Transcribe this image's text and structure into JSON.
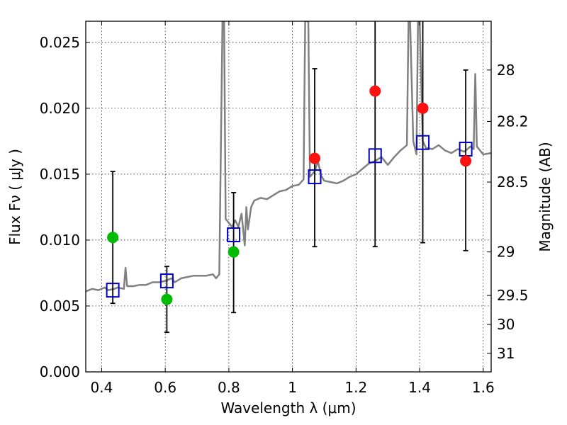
{
  "chart_data": {
    "type": "scatter",
    "title": "",
    "xlabel": "Wavelength  λ (μm)",
    "ylabel": "Flux  Fν  ( μJy )",
    "y2label": "Magnitude (AB)",
    "xlim": [
      0.35,
      1.625
    ],
    "ylim": [
      0.0,
      0.0266
    ],
    "grid": true,
    "x_ticks": [
      0.4,
      0.6,
      0.8,
      1.0,
      1.2,
      1.4,
      1.6
    ],
    "x_tick_labels": [
      "0.4",
      "0.6",
      "0.8",
      "1",
      "1.2",
      "1.4",
      "1.6"
    ],
    "y_ticks": [
      0.0,
      0.005,
      0.01,
      0.015,
      0.02,
      0.025
    ],
    "y_tick_labels": [
      "0.000",
      "0.005",
      "0.010",
      "0.015",
      "0.020",
      "0.025"
    ],
    "y2_ticks": [
      {
        "label": "28",
        "flux": 0.0229
      },
      {
        "label": "28.2",
        "flux": 0.019
      },
      {
        "label": "28.5",
        "flux": 0.0144
      },
      {
        "label": "29",
        "flux": 0.0091
      },
      {
        "label": "29.5",
        "flux": 0.0058
      },
      {
        "label": "30",
        "flux": 0.0036
      },
      {
        "label": "31",
        "flux": 0.0014
      }
    ],
    "model_spectrum": {
      "color": "#808080",
      "points": [
        [
          0.35,
          0.0061
        ],
        [
          0.37,
          0.0063
        ],
        [
          0.39,
          0.0062
        ],
        [
          0.41,
          0.0064
        ],
        [
          0.42,
          0.0062
        ],
        [
          0.44,
          0.0063
        ],
        [
          0.45,
          0.0064
        ],
        [
          0.47,
          0.0063
        ],
        [
          0.475,
          0.0079
        ],
        [
          0.48,
          0.0065
        ],
        [
          0.5,
          0.0065
        ],
        [
          0.52,
          0.0066
        ],
        [
          0.54,
          0.0066
        ],
        [
          0.56,
          0.0068
        ],
        [
          0.58,
          0.0068
        ],
        [
          0.6,
          0.0069
        ],
        [
          0.62,
          0.0071
        ],
        [
          0.63,
          0.0068
        ],
        [
          0.65,
          0.0071
        ],
        [
          0.67,
          0.0072
        ],
        [
          0.69,
          0.0073
        ],
        [
          0.71,
          0.0073
        ],
        [
          0.73,
          0.0073
        ],
        [
          0.75,
          0.0074
        ],
        [
          0.76,
          0.0071
        ],
        [
          0.77,
          0.0074
        ],
        [
          0.78,
          0.0266
        ],
        [
          0.785,
          0.0266
        ],
        [
          0.79,
          0.0116
        ],
        [
          0.8,
          0.0113
        ],
        [
          0.81,
          0.011
        ],
        [
          0.82,
          0.0115
        ],
        [
          0.83,
          0.011
        ],
        [
          0.84,
          0.012
        ],
        [
          0.85,
          0.0096
        ],
        [
          0.855,
          0.0125
        ],
        [
          0.86,
          0.0108
        ],
        [
          0.87,
          0.0125
        ],
        [
          0.88,
          0.013
        ],
        [
          0.9,
          0.0132
        ],
        [
          0.92,
          0.0131
        ],
        [
          0.94,
          0.0134
        ],
        [
          0.96,
          0.0137
        ],
        [
          0.98,
          0.0138
        ],
        [
          1.0,
          0.0141
        ],
        [
          1.02,
          0.0142
        ],
        [
          1.035,
          0.0146
        ],
        [
          1.04,
          0.0266
        ],
        [
          1.05,
          0.0266
        ],
        [
          1.055,
          0.0148
        ],
        [
          1.07,
          0.0152
        ],
        [
          1.08,
          0.016
        ],
        [
          1.09,
          0.0149
        ],
        [
          1.1,
          0.0145
        ],
        [
          1.12,
          0.0144
        ],
        [
          1.14,
          0.0143
        ],
        [
          1.16,
          0.0145
        ],
        [
          1.18,
          0.0148
        ],
        [
          1.2,
          0.015
        ],
        [
          1.22,
          0.0154
        ],
        [
          1.24,
          0.0158
        ],
        [
          1.26,
          0.016
        ],
        [
          1.28,
          0.0163
        ],
        [
          1.3,
          0.0157
        ],
        [
          1.32,
          0.0163
        ],
        [
          1.34,
          0.0168
        ],
        [
          1.36,
          0.0172
        ],
        [
          1.365,
          0.0266
        ],
        [
          1.37,
          0.0266
        ],
        [
          1.38,
          0.0175
        ],
        [
          1.39,
          0.0165
        ],
        [
          1.395,
          0.0266
        ],
        [
          1.4,
          0.0266
        ],
        [
          1.41,
          0.0175
        ],
        [
          1.42,
          0.017
        ],
        [
          1.44,
          0.0169
        ],
        [
          1.46,
          0.0172
        ],
        [
          1.48,
          0.0168
        ],
        [
          1.5,
          0.0166
        ],
        [
          1.52,
          0.0169
        ],
        [
          1.54,
          0.0167
        ],
        [
          1.56,
          0.0171
        ],
        [
          1.57,
          0.0169
        ],
        [
          1.575,
          0.0226
        ],
        [
          1.58,
          0.0171
        ],
        [
          1.6,
          0.0165
        ],
        [
          1.625,
          0.0166
        ]
      ]
    },
    "series": [
      {
        "marker": "open-square",
        "color": "#0000cc",
        "points": [
          [
            0.435,
            0.0062
          ],
          [
            0.605,
            0.0069
          ],
          [
            0.815,
            0.0104
          ],
          [
            1.07,
            0.0148
          ],
          [
            1.26,
            0.0164
          ],
          [
            1.41,
            0.0174
          ],
          [
            1.545,
            0.0169
          ]
        ]
      },
      {
        "marker": "filled-circle",
        "color": "#00bb00",
        "points": [
          [
            0.435,
            0.0102
          ],
          [
            0.605,
            0.0055
          ],
          [
            0.815,
            0.0091
          ]
        ]
      },
      {
        "marker": "filled-circle",
        "color": "#ff1111",
        "points": [
          [
            1.07,
            0.0162
          ],
          [
            1.26,
            0.0213
          ],
          [
            1.41,
            0.02
          ],
          [
            1.545,
            0.016
          ]
        ]
      }
    ],
    "error_bars": [
      {
        "x": 0.435,
        "low": 0.0052,
        "high": 0.0152
      },
      {
        "x": 0.605,
        "low": 0.003,
        "high": 0.008
      },
      {
        "x": 0.815,
        "low": 0.0045,
        "high": 0.0136
      },
      {
        "x": 1.07,
        "low": 0.0095,
        "high": 0.023
      },
      {
        "x": 1.26,
        "low": 0.0095,
        "high": 0.0266
      },
      {
        "x": 1.41,
        "low": 0.0098,
        "high": 0.0266
      },
      {
        "x": 1.545,
        "low": 0.0092,
        "high": 0.0229
      }
    ]
  }
}
